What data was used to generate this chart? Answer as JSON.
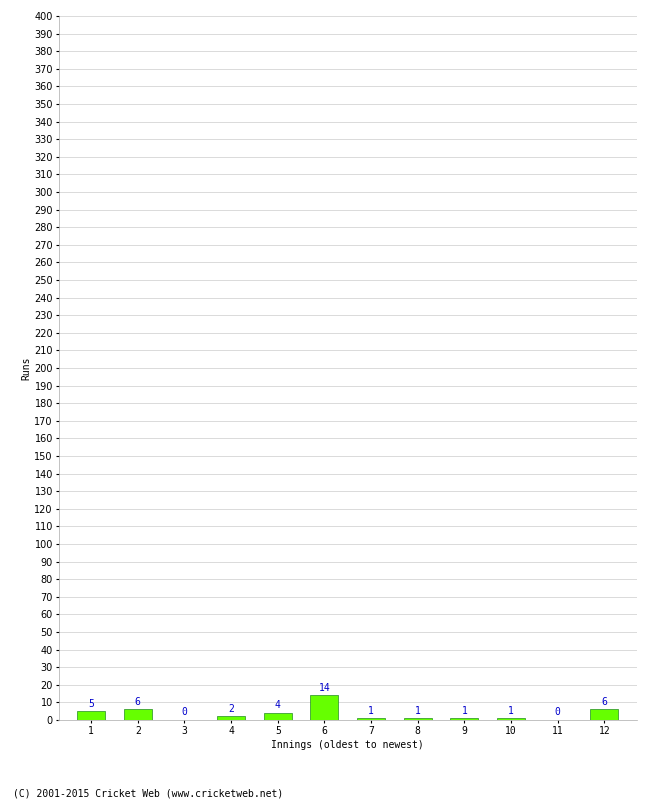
{
  "xlabel": "Innings (oldest to newest)",
  "ylabel": "Runs",
  "categories": [
    1,
    2,
    3,
    4,
    5,
    6,
    7,
    8,
    9,
    10,
    11,
    12
  ],
  "values": [
    5,
    6,
    0,
    2,
    4,
    14,
    1,
    1,
    1,
    1,
    0,
    6
  ],
  "bar_color": "#66ff00",
  "bar_edge_color": "#228B22",
  "label_color": "#0000cc",
  "ylim": [
    0,
    400
  ],
  "yticks": [
    0,
    10,
    20,
    30,
    40,
    50,
    60,
    70,
    80,
    90,
    100,
    110,
    120,
    130,
    140,
    150,
    160,
    170,
    180,
    190,
    200,
    210,
    220,
    230,
    240,
    250,
    260,
    270,
    280,
    290,
    300,
    310,
    320,
    330,
    340,
    350,
    360,
    370,
    380,
    390,
    400
  ],
  "background_color": "#ffffff",
  "grid_color": "#cccccc",
  "footer": "(C) 2001-2015 Cricket Web (www.cricketweb.net)",
  "label_fontsize": 7,
  "axis_fontsize": 7,
  "footer_fontsize": 7,
  "ylabel_fontsize": 7
}
